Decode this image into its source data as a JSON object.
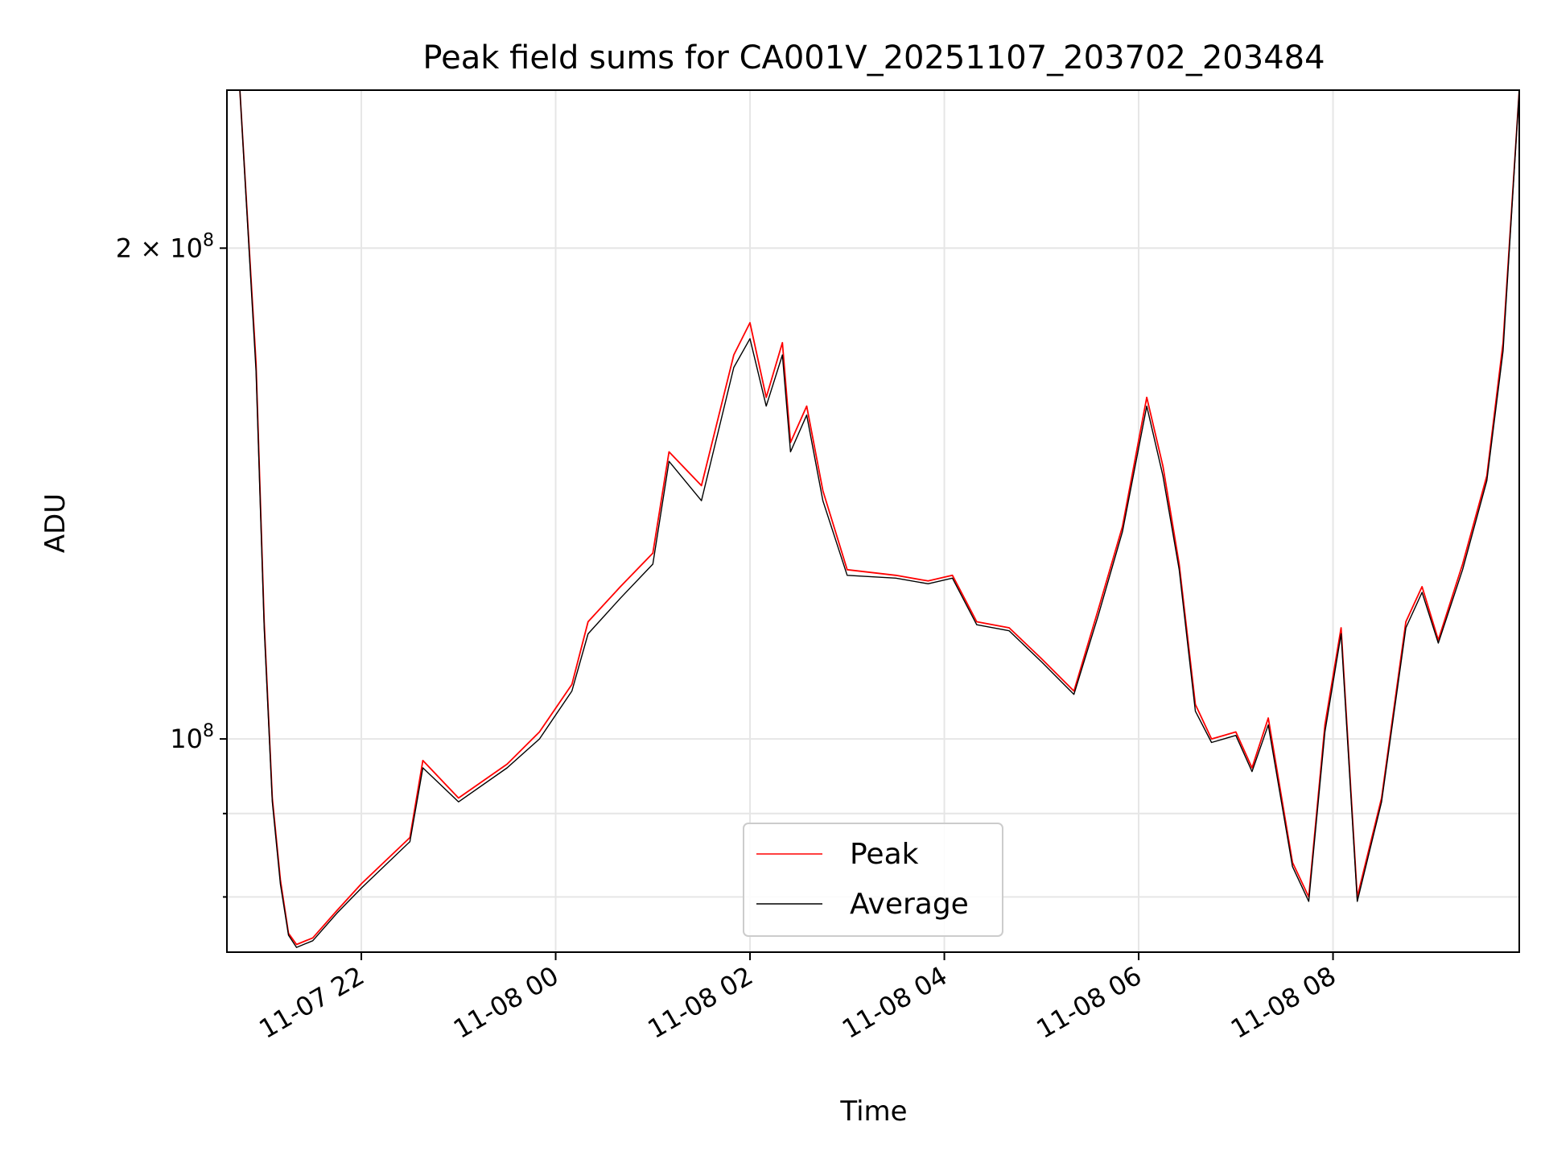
{
  "chart_data": {
    "type": "line",
    "title": "Peak field sums for CA001V_20251107_203702_203484",
    "xlabel": "Time",
    "ylabel": "ADU",
    "yscale": "log",
    "ylim": [
      74000000,
      250000000
    ],
    "xlim": [
      "2025-11-07 20:37",
      "2025-11-08 09:55"
    ],
    "x_ticks": [
      "11-07 22",
      "11-08 00",
      "11-08 02",
      "11-08 04",
      "11-08 06",
      "11-08 08"
    ],
    "y_tick_labels": [
      "2 × 10^8",
      "10^8"
    ],
    "grid": true,
    "legend_position": "lower center",
    "series": [
      {
        "name": "Peak",
        "color": "#ff0000",
        "x": [
          "2025-11-07 20:45",
          "2025-11-07 20:55",
          "2025-11-07 21:00",
          "2025-11-07 21:05",
          "2025-11-07 21:10",
          "2025-11-07 21:15",
          "2025-11-07 21:20",
          "2025-11-07 21:30",
          "2025-11-07 21:45",
          "2025-11-07 22:00",
          "2025-11-07 22:30",
          "2025-11-07 22:38",
          "2025-11-07 23:00",
          "2025-11-07 23:30",
          "2025-11-07 23:50",
          "2025-11-08 00:10",
          "2025-11-08 00:20",
          "2025-11-08 00:40",
          "2025-11-08 01:00",
          "2025-11-08 01:10",
          "2025-11-08 01:30",
          "2025-11-08 01:50",
          "2025-11-08 02:00",
          "2025-11-08 02:10",
          "2025-11-08 02:20",
          "2025-11-08 02:25",
          "2025-11-08 02:35",
          "2025-11-08 02:45",
          "2025-11-08 03:00",
          "2025-11-08 03:30",
          "2025-11-08 03:50",
          "2025-11-08 04:05",
          "2025-11-08 04:20",
          "2025-11-08 04:40",
          "2025-11-08 05:00",
          "2025-11-08 05:20",
          "2025-11-08 05:35",
          "2025-11-08 05:50",
          "2025-11-08 06:05",
          "2025-11-08 06:15",
          "2025-11-08 06:25",
          "2025-11-08 06:35",
          "2025-11-08 06:45",
          "2025-11-08 07:00",
          "2025-11-08 07:10",
          "2025-11-08 07:20",
          "2025-11-08 07:35",
          "2025-11-08 07:45",
          "2025-11-08 07:55",
          "2025-11-08 08:05",
          "2025-11-08 08:15",
          "2025-11-08 08:30",
          "2025-11-08 08:45",
          "2025-11-08 08:55",
          "2025-11-08 09:05",
          "2025-11-08 09:20",
          "2025-11-08 09:35",
          "2025-11-08 09:45",
          "2025-11-08 09:55"
        ],
        "values": [
          250000000,
          170000000,
          118000000,
          92000000,
          82000000,
          76000000,
          74800000,
          75500000,
          78500000,
          81500000,
          87000000,
          97000000,
          92000000,
          96500000,
          101000000,
          108000000,
          118000000,
          124000000,
          130000000,
          150000000,
          143000000,
          172000000,
          180000000,
          162000000,
          175000000,
          152000000,
          160000000,
          142000000,
          127000000,
          126000000,
          125000000,
          126000000,
          118000000,
          117000000,
          112000000,
          107000000,
          120000000,
          135000000,
          162000000,
          147000000,
          128000000,
          105000000,
          100000000,
          101000000,
          96000000,
          103000000,
          84000000,
          80000000,
          102000000,
          117000000,
          80000000,
          92000000,
          118000000,
          124000000,
          115000000,
          128000000,
          145000000,
          175000000,
          250000000
        ]
      },
      {
        "name": "Average",
        "color": "#000000",
        "x": [
          "2025-11-07 20:45",
          "2025-11-07 20:55",
          "2025-11-07 21:00",
          "2025-11-07 21:05",
          "2025-11-07 21:10",
          "2025-11-07 21:15",
          "2025-11-07 21:20",
          "2025-11-07 21:30",
          "2025-11-07 21:45",
          "2025-11-07 22:00",
          "2025-11-07 22:30",
          "2025-11-07 22:38",
          "2025-11-07 23:00",
          "2025-11-07 23:30",
          "2025-11-07 23:50",
          "2025-11-08 00:10",
          "2025-11-08 00:20",
          "2025-11-08 00:40",
          "2025-11-08 01:00",
          "2025-11-08 01:10",
          "2025-11-08 01:30",
          "2025-11-08 01:50",
          "2025-11-08 02:00",
          "2025-11-08 02:10",
          "2025-11-08 02:20",
          "2025-11-08 02:25",
          "2025-11-08 02:35",
          "2025-11-08 02:45",
          "2025-11-08 03:00",
          "2025-11-08 03:30",
          "2025-11-08 03:50",
          "2025-11-08 04:05",
          "2025-11-08 04:20",
          "2025-11-08 04:40",
          "2025-11-08 05:00",
          "2025-11-08 05:20",
          "2025-11-08 05:35",
          "2025-11-08 05:50",
          "2025-11-08 06:05",
          "2025-11-08 06:15",
          "2025-11-08 06:25",
          "2025-11-08 06:35",
          "2025-11-08 06:45",
          "2025-11-08 07:00",
          "2025-11-08 07:10",
          "2025-11-08 07:20",
          "2025-11-08 07:35",
          "2025-11-08 07:45",
          "2025-11-08 07:55",
          "2025-11-08 08:05",
          "2025-11-08 08:15",
          "2025-11-08 08:30",
          "2025-11-08 08:45",
          "2025-11-08 08:55",
          "2025-11-08 09:05",
          "2025-11-08 09:20",
          "2025-11-08 09:35",
          "2025-11-08 09:45",
          "2025-11-08 09:55"
        ],
        "values": [
          250000000,
          168000000,
          117000000,
          91500000,
          81500000,
          75800000,
          74500000,
          75200000,
          78200000,
          81000000,
          86500000,
          96000000,
          91500000,
          96000000,
          100000000,
          107000000,
          116000000,
          122000000,
          128000000,
          148000000,
          140000000,
          169000000,
          176000000,
          160000000,
          172000000,
          150000000,
          158000000,
          140000000,
          126000000,
          125500000,
          124500000,
          125500000,
          117500000,
          116500000,
          111500000,
          106500000,
          119000000,
          134000000,
          160000000,
          145000000,
          127000000,
          104000000,
          99500000,
          100500000,
          95500000,
          102000000,
          83500000,
          79500000,
          101000000,
          116000000,
          79500000,
          91500000,
          117000000,
          123000000,
          114500000,
          127000000,
          144000000,
          173000000,
          250000000
        ]
      }
    ]
  }
}
